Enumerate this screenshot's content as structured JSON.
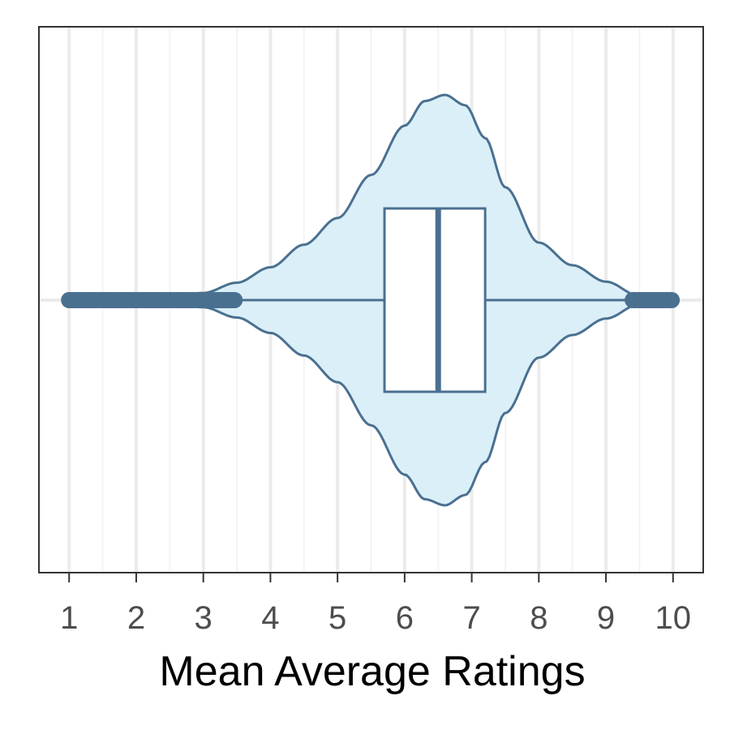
{
  "chart_data": {
    "type": "violin",
    "orientation": "horizontal",
    "title": "",
    "xlabel": "Mean Average Ratings",
    "ylabel": "",
    "xlim": [
      0.55,
      10.45
    ],
    "x_ticks": [
      1,
      2,
      3,
      4,
      5,
      6,
      7,
      8,
      9,
      10
    ],
    "x_tick_labels": [
      "1",
      "2",
      "3",
      "4",
      "5",
      "6",
      "7",
      "8",
      "9",
      "10"
    ],
    "minor_grid": [
      1.5,
      2.5,
      3.5,
      4.5,
      5.5,
      6.5,
      7.5,
      8.5,
      9.5
    ],
    "grid": true,
    "legend": "none",
    "box": {
      "q1": 5.7,
      "median": 6.5,
      "q3": 7.2,
      "whisker_low": 3.5,
      "whisker_high": 9.4
    },
    "outliers": {
      "low_range": [
        1.0,
        3.5
      ],
      "high_range": [
        9.4,
        10.0
      ]
    },
    "density_profile": {
      "x": [
        1.0,
        2.0,
        2.5,
        3.0,
        3.5,
        4.0,
        4.5,
        5.0,
        5.5,
        6.0,
        6.3,
        6.6,
        6.9,
        7.2,
        7.5,
        8.0,
        8.5,
        9.0,
        9.5,
        10.0
      ],
      "relative_width": [
        0.0,
        0.005,
        0.012,
        0.035,
        0.085,
        0.16,
        0.27,
        0.4,
        0.61,
        0.85,
        0.97,
        1.0,
        0.95,
        0.79,
        0.55,
        0.28,
        0.17,
        0.09,
        0.02,
        0.0
      ]
    },
    "colors": {
      "violin_fill": "#dbeff8",
      "violin_line": "#4a7090",
      "box_fill": "#ffffff",
      "points": "#4a7090",
      "panel_border": "#333333",
      "grid_major": "#ebebeb",
      "grid_minor": "#f3f3f3"
    }
  }
}
